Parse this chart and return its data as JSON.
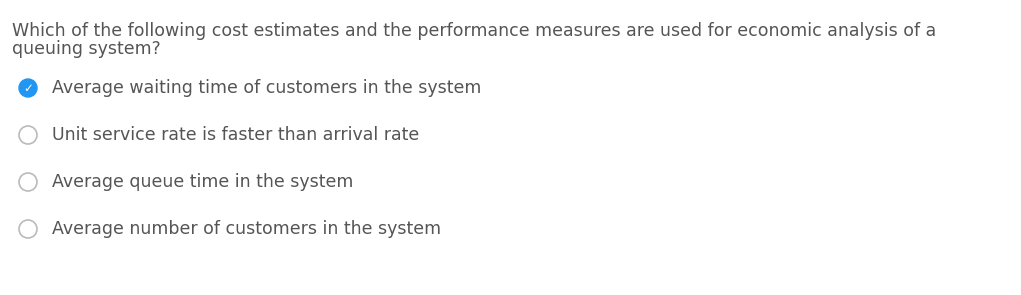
{
  "question_line1": "Which of the following cost estimates and the performance measures are used for economic analysis of a",
  "question_line2": "queuing system?",
  "options": [
    {
      "text": "Average waiting time of customers in the system",
      "selected": true
    },
    {
      "text": "Unit service rate is faster than arrival rate",
      "selected": false
    },
    {
      "text": "Average queue time in the system",
      "selected": false
    },
    {
      "text": "Average number of customers in the system",
      "selected": false
    }
  ],
  "background_color": "#ffffff",
  "text_color": "#555555",
  "question_color": "#555555",
  "selected_circle_color": "#2196F3",
  "unselected_circle_edge_color": "#bbbbbb",
  "checkmark_color": "#ffffff",
  "font_size": 12.5,
  "question_font_size": 12.5,
  "fig_width": 10.21,
  "fig_height": 2.95,
  "dpi": 100
}
